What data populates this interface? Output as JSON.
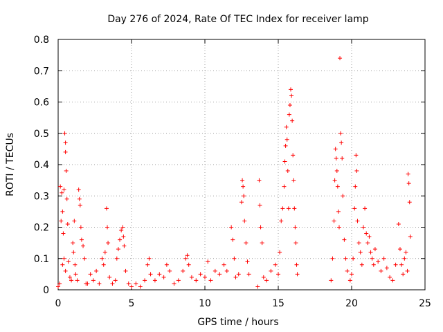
{
  "chart_data": {
    "type": "scatter",
    "title": "Day 276 of 2024, Rate Of TEC Index for receiver lamp",
    "xlabel": "GPS time / hours",
    "ylabel": "ROTI / TECUs",
    "xlim": [
      0,
      25
    ],
    "ylim": [
      0,
      0.8
    ],
    "xticks": [
      0,
      5,
      10,
      15,
      20,
      25
    ],
    "yticks": [
      0,
      0.1,
      0.2,
      0.3,
      0.4,
      0.5,
      0.6,
      0.7,
      0.8
    ],
    "grid": true,
    "marker": "+",
    "color": "#ff0000",
    "series": [
      {
        "name": "ROTI",
        "points": [
          [
            0.0,
            0.01
          ],
          [
            0.1,
            0.02
          ],
          [
            0.15,
            0.33
          ],
          [
            0.2,
            0.22
          ],
          [
            0.25,
            0.31
          ],
          [
            0.3,
            0.25
          ],
          [
            0.35,
            0.18
          ],
          [
            0.4,
            0.32
          ],
          [
            0.45,
            0.5
          ],
          [
            0.5,
            0.47
          ],
          [
            0.55,
            0.38
          ],
          [
            0.5,
            0.44
          ],
          [
            0.6,
            0.29
          ],
          [
            0.65,
            0.21
          ],
          [
            0.3,
            0.08
          ],
          [
            0.4,
            0.1
          ],
          [
            0.5,
            0.06
          ],
          [
            0.7,
            0.09
          ],
          [
            0.8,
            0.04
          ],
          [
            0.9,
            0.03
          ],
          [
            1.0,
            0.15
          ],
          [
            1.05,
            0.12
          ],
          [
            1.1,
            0.22
          ],
          [
            1.15,
            0.08
          ],
          [
            1.2,
            0.05
          ],
          [
            1.3,
            0.03
          ],
          [
            1.4,
            0.32
          ],
          [
            1.45,
            0.29
          ],
          [
            1.5,
            0.27
          ],
          [
            1.55,
            0.2
          ],
          [
            1.6,
            0.16
          ],
          [
            1.7,
            0.14
          ],
          [
            1.8,
            0.1
          ],
          [
            1.9,
            0.02
          ],
          [
            2.0,
            0.02
          ],
          [
            2.2,
            0.05
          ],
          [
            2.4,
            0.03
          ],
          [
            2.6,
            0.06
          ],
          [
            2.8,
            0.02
          ],
          [
            3.0,
            0.1
          ],
          [
            3.1,
            0.08
          ],
          [
            3.2,
            0.12
          ],
          [
            3.3,
            0.26
          ],
          [
            3.35,
            0.2
          ],
          [
            3.4,
            0.15
          ],
          [
            3.5,
            0.04
          ],
          [
            3.7,
            0.02
          ],
          [
            3.9,
            0.03
          ],
          [
            4.0,
            0.1
          ],
          [
            4.1,
            0.13
          ],
          [
            4.2,
            0.16
          ],
          [
            4.3,
            0.19
          ],
          [
            4.4,
            0.2
          ],
          [
            4.45,
            0.17
          ],
          [
            4.5,
            0.14
          ],
          [
            4.6,
            0.06
          ],
          [
            4.8,
            0.02
          ],
          [
            5.0,
            0.01
          ],
          [
            5.3,
            0.02
          ],
          [
            5.6,
            0.01
          ],
          [
            5.9,
            0.03
          ],
          [
            6.1,
            0.08
          ],
          [
            6.2,
            0.1
          ],
          [
            6.3,
            0.05
          ],
          [
            6.6,
            0.03
          ],
          [
            6.9,
            0.05
          ],
          [
            7.2,
            0.04
          ],
          [
            7.4,
            0.08
          ],
          [
            7.6,
            0.06
          ],
          [
            7.9,
            0.02
          ],
          [
            8.2,
            0.03
          ],
          [
            8.5,
            0.06
          ],
          [
            8.7,
            0.1
          ],
          [
            8.8,
            0.11
          ],
          [
            8.9,
            0.08
          ],
          [
            9.1,
            0.04
          ],
          [
            9.4,
            0.03
          ],
          [
            9.7,
            0.05
          ],
          [
            10.0,
            0.04
          ],
          [
            10.2,
            0.09
          ],
          [
            10.4,
            0.03
          ],
          [
            10.7,
            0.06
          ],
          [
            11.0,
            0.05
          ],
          [
            11.3,
            0.08
          ],
          [
            11.5,
            0.06
          ],
          [
            11.8,
            0.2
          ],
          [
            11.9,
            0.16
          ],
          [
            12.0,
            0.1
          ],
          [
            12.1,
            0.04
          ],
          [
            12.3,
            0.05
          ],
          [
            12.5,
            0.28
          ],
          [
            12.55,
            0.35
          ],
          [
            12.6,
            0.33
          ],
          [
            12.65,
            0.3
          ],
          [
            12.7,
            0.22
          ],
          [
            12.8,
            0.15
          ],
          [
            12.9,
            0.09
          ],
          [
            13.0,
            0.05
          ],
          [
            13.6,
            0.01
          ],
          [
            13.7,
            0.35
          ],
          [
            13.75,
            0.27
          ],
          [
            13.8,
            0.2
          ],
          [
            13.9,
            0.15
          ],
          [
            14.0,
            0.04
          ],
          [
            14.2,
            0.03
          ],
          [
            14.5,
            0.06
          ],
          [
            14.8,
            0.08
          ],
          [
            15.0,
            0.05
          ],
          [
            15.1,
            0.12
          ],
          [
            15.2,
            0.22
          ],
          [
            15.3,
            0.26
          ],
          [
            15.4,
            0.33
          ],
          [
            15.45,
            0.41
          ],
          [
            15.5,
            0.46
          ],
          [
            15.55,
            0.52
          ],
          [
            15.6,
            0.48
          ],
          [
            15.65,
            0.38
          ],
          [
            15.7,
            0.26
          ],
          [
            15.75,
            0.56
          ],
          [
            15.8,
            0.59
          ],
          [
            15.85,
            0.64
          ],
          [
            15.9,
            0.62
          ],
          [
            15.95,
            0.54
          ],
          [
            16.0,
            0.43
          ],
          [
            16.05,
            0.35
          ],
          [
            16.1,
            0.26
          ],
          [
            16.15,
            0.2
          ],
          [
            16.2,
            0.15
          ],
          [
            16.25,
            0.08
          ],
          [
            16.3,
            0.05
          ],
          [
            18.6,
            0.03
          ],
          [
            18.7,
            0.1
          ],
          [
            18.8,
            0.22
          ],
          [
            18.85,
            0.35
          ],
          [
            18.9,
            0.45
          ],
          [
            18.95,
            0.42
          ],
          [
            19.0,
            0.38
          ],
          [
            19.05,
            0.33
          ],
          [
            19.1,
            0.25
          ],
          [
            19.15,
            0.2
          ],
          [
            19.2,
            0.74
          ],
          [
            19.25,
            0.5
          ],
          [
            19.3,
            0.47
          ],
          [
            19.35,
            0.42
          ],
          [
            19.4,
            0.3
          ],
          [
            19.5,
            0.16
          ],
          [
            19.6,
            0.1
          ],
          [
            19.7,
            0.06
          ],
          [
            19.9,
            0.03
          ],
          [
            20.0,
            0.05
          ],
          [
            20.1,
            0.1
          ],
          [
            20.2,
            0.26
          ],
          [
            20.25,
            0.33
          ],
          [
            20.3,
            0.43
          ],
          [
            20.35,
            0.38
          ],
          [
            20.4,
            0.22
          ],
          [
            20.5,
            0.15
          ],
          [
            20.6,
            0.12
          ],
          [
            20.7,
            0.08
          ],
          [
            20.8,
            0.2
          ],
          [
            20.9,
            0.26
          ],
          [
            21.0,
            0.18
          ],
          [
            21.1,
            0.15
          ],
          [
            21.2,
            0.17
          ],
          [
            21.3,
            0.12
          ],
          [
            21.4,
            0.1
          ],
          [
            21.5,
            0.08
          ],
          [
            21.6,
            0.13
          ],
          [
            21.8,
            0.09
          ],
          [
            22.0,
            0.06
          ],
          [
            22.2,
            0.1
          ],
          [
            22.4,
            0.07
          ],
          [
            22.6,
            0.04
          ],
          [
            22.8,
            0.03
          ],
          [
            23.0,
            0.08
          ],
          [
            23.2,
            0.21
          ],
          [
            23.3,
            0.13
          ],
          [
            23.4,
            0.08
          ],
          [
            23.5,
            0.05
          ],
          [
            23.6,
            0.1
          ],
          [
            23.7,
            0.12
          ],
          [
            23.8,
            0.06
          ],
          [
            23.85,
            0.37
          ],
          [
            23.9,
            0.34
          ],
          [
            23.95,
            0.28
          ],
          [
            24.0,
            0.17
          ]
        ]
      }
    ]
  }
}
